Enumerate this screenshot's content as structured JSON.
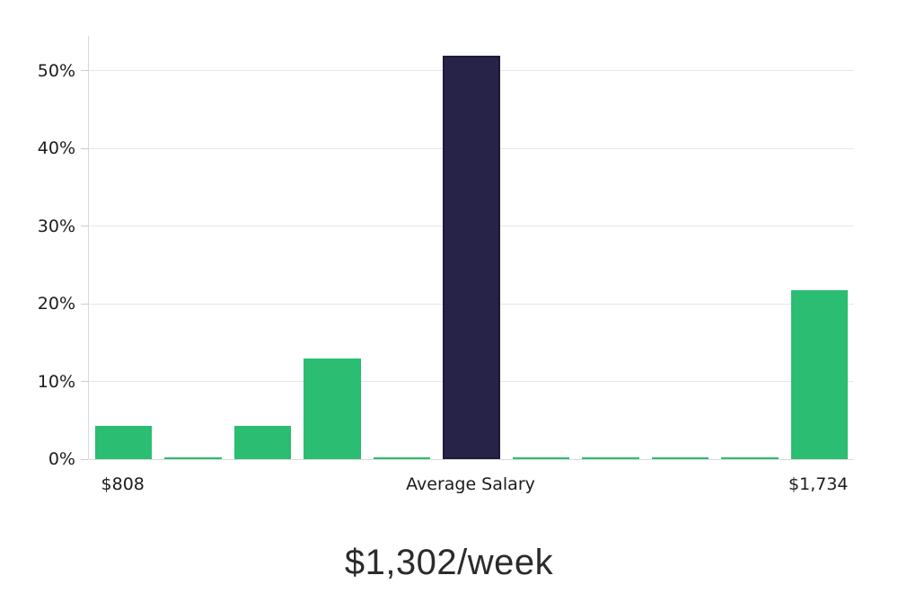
{
  "chart_data": {
    "type": "bar",
    "title": "$1,302/week",
    "values": [
      4.3,
      0.2,
      4.3,
      13.0,
      0.2,
      52.0,
      0.2,
      0.2,
      0.2,
      0.2,
      21.7
    ],
    "highlight_index": 5,
    "x_axis_labels": [
      {
        "text": "$808",
        "bar_index": 0
      },
      {
        "text": "Average Salary",
        "bar_index": 5
      },
      {
        "text": "$1,734",
        "bar_index": 10
      }
    ],
    "y_ticks": [
      "0%",
      "10%",
      "20%",
      "30%",
      "40%",
      "50%"
    ],
    "y_tick_values": [
      0,
      10,
      20,
      30,
      40,
      50
    ],
    "ylim": [
      0,
      54.5
    ],
    "grid": true,
    "legend": "none",
    "colors": {
      "bar": "#2bbd72",
      "highlight_bar": "#272348",
      "highlight_border": "#1d1a38",
      "gridline": "#e7e7e7",
      "axis": "#d9d9d9",
      "tick": "#cccccc",
      "label_text": "#1c1c1c",
      "title_text": "#2b2b2b",
      "background": "#ffffff"
    }
  }
}
